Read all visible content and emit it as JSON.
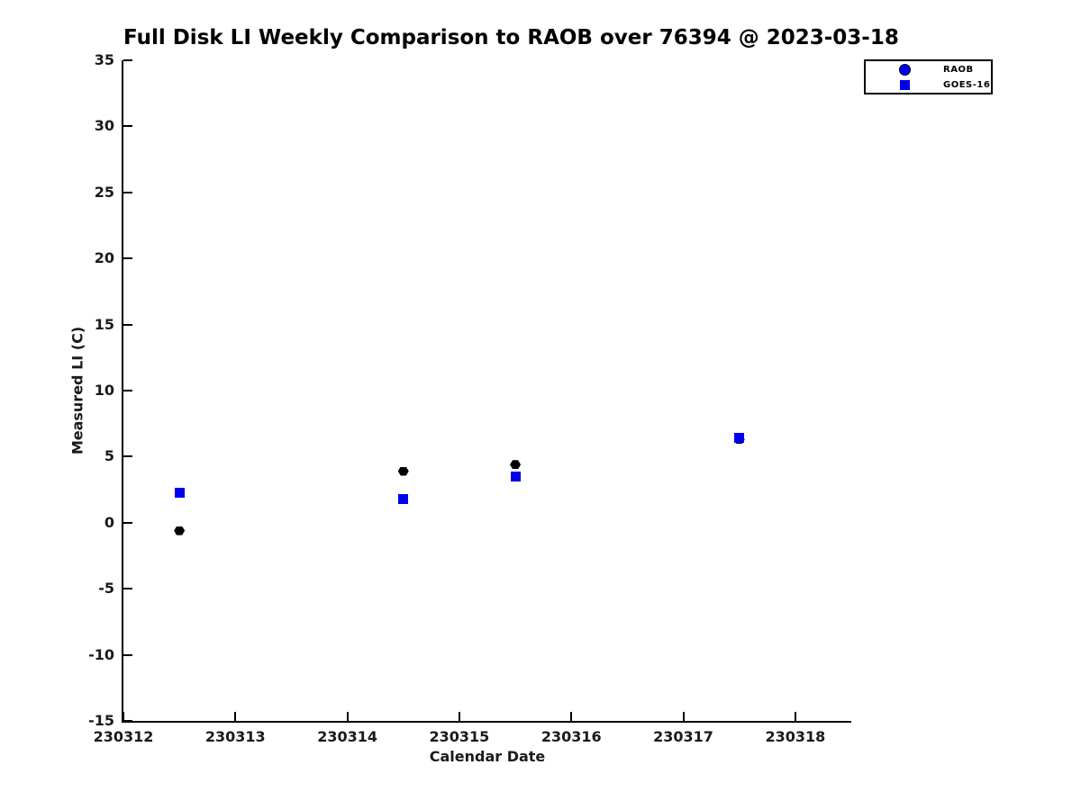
{
  "title": "Full Disk LI Weekly Comparison to RAOB over 76394 @ 2023-03-18",
  "colors": {
    "axis_line": "#000000",
    "axis_text": "#1a1a1a",
    "raob_marker": "#000000",
    "goes16_marker": "#0000ee",
    "legend_raob_marker": "#0000ee",
    "background": "#ffffff"
  },
  "legend": {
    "position": "top-right",
    "items": [
      {
        "label": "RAOB",
        "marker": "circle",
        "color": "#0000ee"
      },
      {
        "label": "GOES-16",
        "marker": "square",
        "color": "#0000ee"
      }
    ]
  },
  "chart_data": {
    "type": "scatter",
    "title": "Full Disk LI Weekly Comparison to RAOB over 76394 @ 2023-03-18",
    "xlabel": "Calendar Date",
    "ylabel": "Measured LI (C)",
    "xlim": [
      230312,
      230318.5
    ],
    "ylim": [
      -15,
      35
    ],
    "xticks": [
      230312,
      230313,
      230314,
      230315,
      230316,
      230317,
      230318
    ],
    "yticks": [
      -15,
      -10,
      -5,
      0,
      5,
      10,
      15,
      20,
      25,
      30,
      35
    ],
    "grid": false,
    "tick_direction": "in",
    "series": [
      {
        "name": "RAOB",
        "marker": "hexagram",
        "color": "#000000",
        "points": [
          [
            230312.5,
            -0.6
          ],
          [
            230314.5,
            3.9
          ],
          [
            230315.5,
            4.4
          ],
          [
            230317.5,
            6.3
          ]
        ]
      },
      {
        "name": "GOES-16",
        "marker": "square",
        "color": "#0000ee",
        "points": [
          [
            230312.5,
            2.3
          ],
          [
            230314.5,
            1.8
          ],
          [
            230315.5,
            3.5
          ],
          [
            230317.5,
            6.4
          ]
        ]
      }
    ]
  }
}
